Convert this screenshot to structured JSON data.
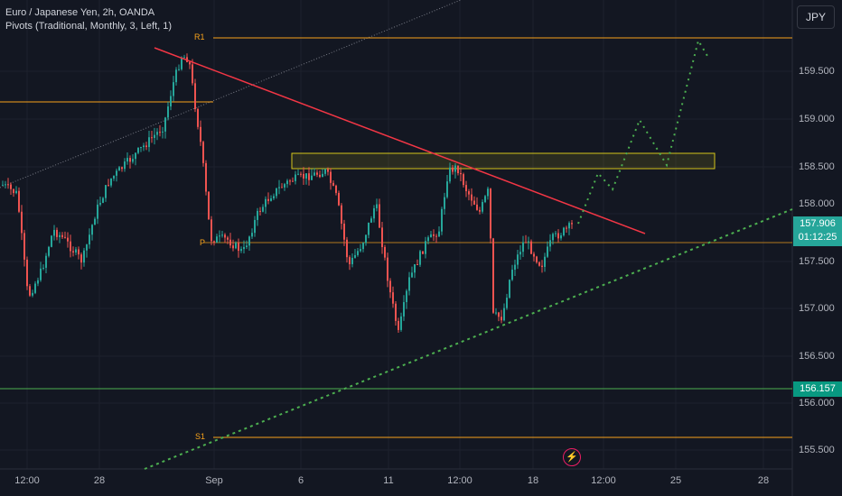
{
  "legend": {
    "symbol": "Euro / Japanese Yen, 2h, OANDA",
    "indicator": "Pivots (Traditional, Monthly, 3, Left, 1)"
  },
  "currency_button": "JPY",
  "y_axis_labels": [
    "159.500",
    "159.000",
    "158.500",
    "158.000",
    "157.500",
    "157.000",
    "156.500",
    "156.000",
    "155.500"
  ],
  "x_axis_labels": [
    "12:00",
    "28",
    "Sep",
    "6",
    "11",
    "12:00",
    "18",
    "12:00",
    "25",
    "28"
  ],
  "price_tag": {
    "price": "157.906",
    "countdown": "01:12:25"
  },
  "level_tag": "156.157",
  "pivot_labels": {
    "r1": "R1",
    "p": "P",
    "s1": "S1"
  },
  "event_icon": "lightning-icon",
  "colors": {
    "background": "#131722",
    "bull": "#26a69a",
    "bear": "#ef5350",
    "pivot": "#f7a21b",
    "trendline": "#f23645",
    "support": "#4caf50",
    "zone": "#d4c51a"
  }
}
